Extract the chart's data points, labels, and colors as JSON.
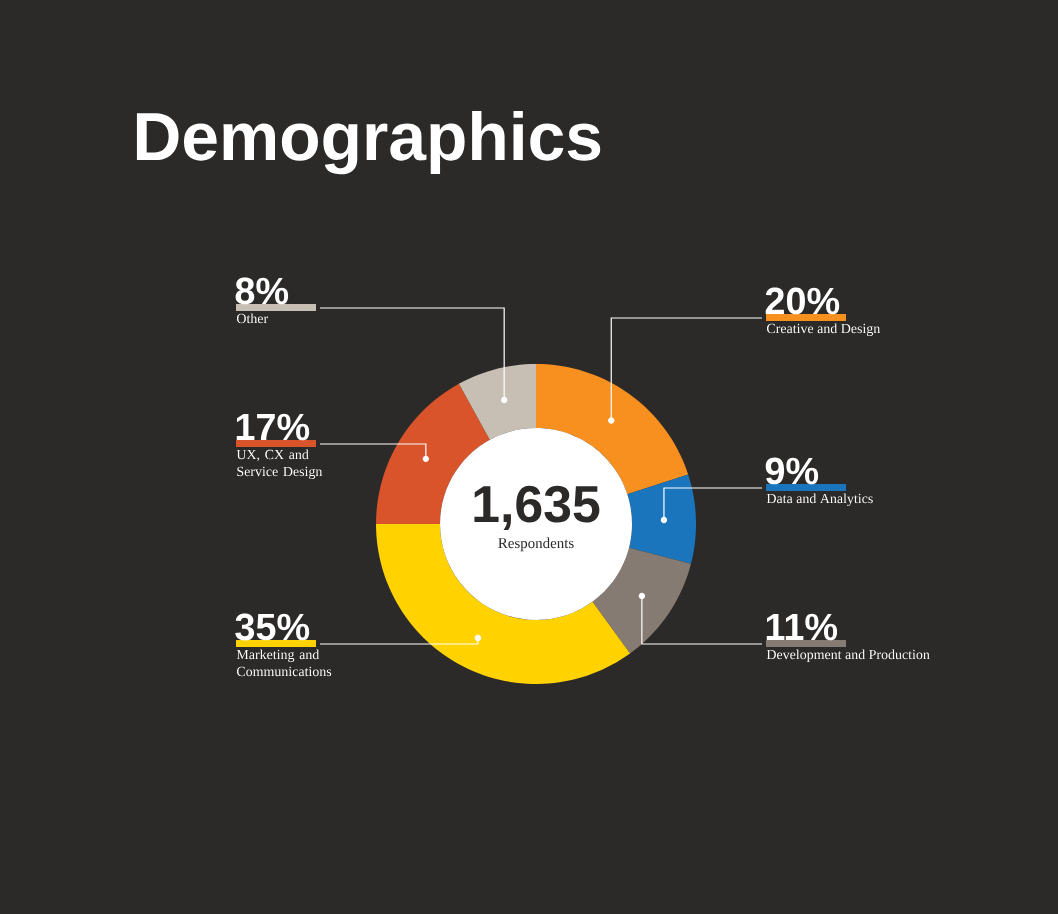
{
  "chart_data": {
    "type": "donut",
    "title": "Demographics",
    "categories": [
      "Creative and Design",
      "Data and Analytics",
      "Development and Production",
      "Marketing and Communications",
      "UX, CX and Service Design",
      "Other"
    ],
    "values": [
      20,
      9,
      11,
      35,
      17,
      8
    ],
    "colors": [
      "#f7901e",
      "#1a75bc",
      "#857b72",
      "#ffd200",
      "#d9532b",
      "#c8bfb4"
    ],
    "value_labels": [
      "20%",
      "9%",
      "11%",
      "35%",
      "17%",
      "8%"
    ],
    "annotations": [
      "1,635",
      "Respondents"
    ]
  }
}
